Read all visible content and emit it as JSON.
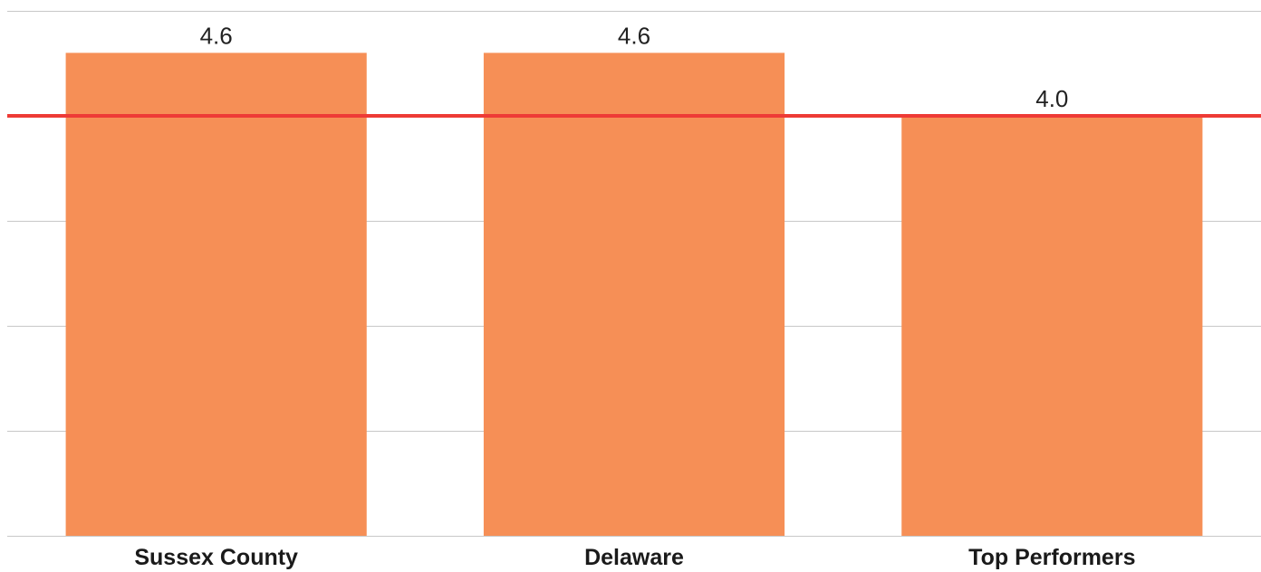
{
  "chart_data": {
    "type": "bar",
    "categories": [
      "Sussex County",
      "Delaware",
      "Top Performers"
    ],
    "values": [
      4.6,
      4.6,
      4.0
    ],
    "value_labels": [
      "4.6",
      "4.6",
      "4.0"
    ],
    "reference_line": 4.0,
    "ylim": [
      0,
      5
    ],
    "grid": true,
    "title": "",
    "xlabel": "",
    "ylabel": ""
  },
  "colors": {
    "bar": "#F68F56",
    "reference_line": "#EE3B36",
    "grid": "#C8C8C8"
  }
}
